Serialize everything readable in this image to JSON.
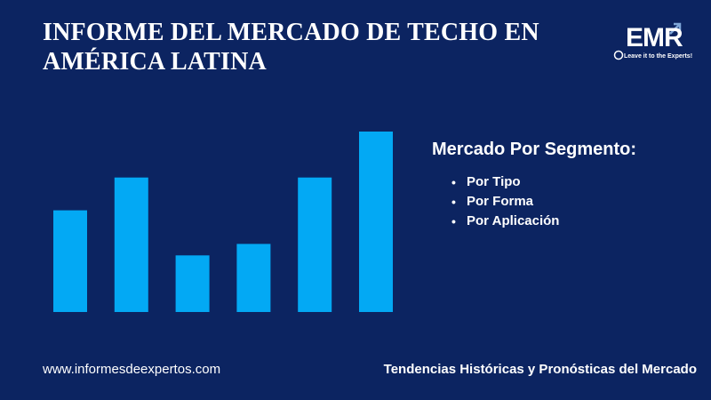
{
  "header": {
    "title_line1": "INFORME DEL MERCADO DE TECHO EN",
    "title_line2": "AMÉRICA LATINA"
  },
  "logo": {
    "text": "EMR",
    "tagline": "Leave it to the Experts!",
    "color": "#ffffff"
  },
  "chart_data": {
    "type": "bar",
    "categories": [
      "",
      "",
      "",
      "",
      "",
      ""
    ],
    "values": [
      115,
      152,
      64,
      77,
      152,
      204
    ],
    "ylim": [
      0,
      204
    ],
    "grid": false,
    "color": "#03a9f4"
  },
  "segment": {
    "title": "Mercado Por Segmento:",
    "items": [
      "Por Tipo",
      "Por Forma",
      "Por Aplicación"
    ],
    "bullet": "•"
  },
  "footer": {
    "website": "www.informesdeexpertos.com",
    "tagline": "Tendencias Históricas y Pronósticas del Mercado"
  },
  "colors": {
    "background": "#0c2461",
    "bar": "#03a9f4",
    "text": "#ffffff"
  }
}
